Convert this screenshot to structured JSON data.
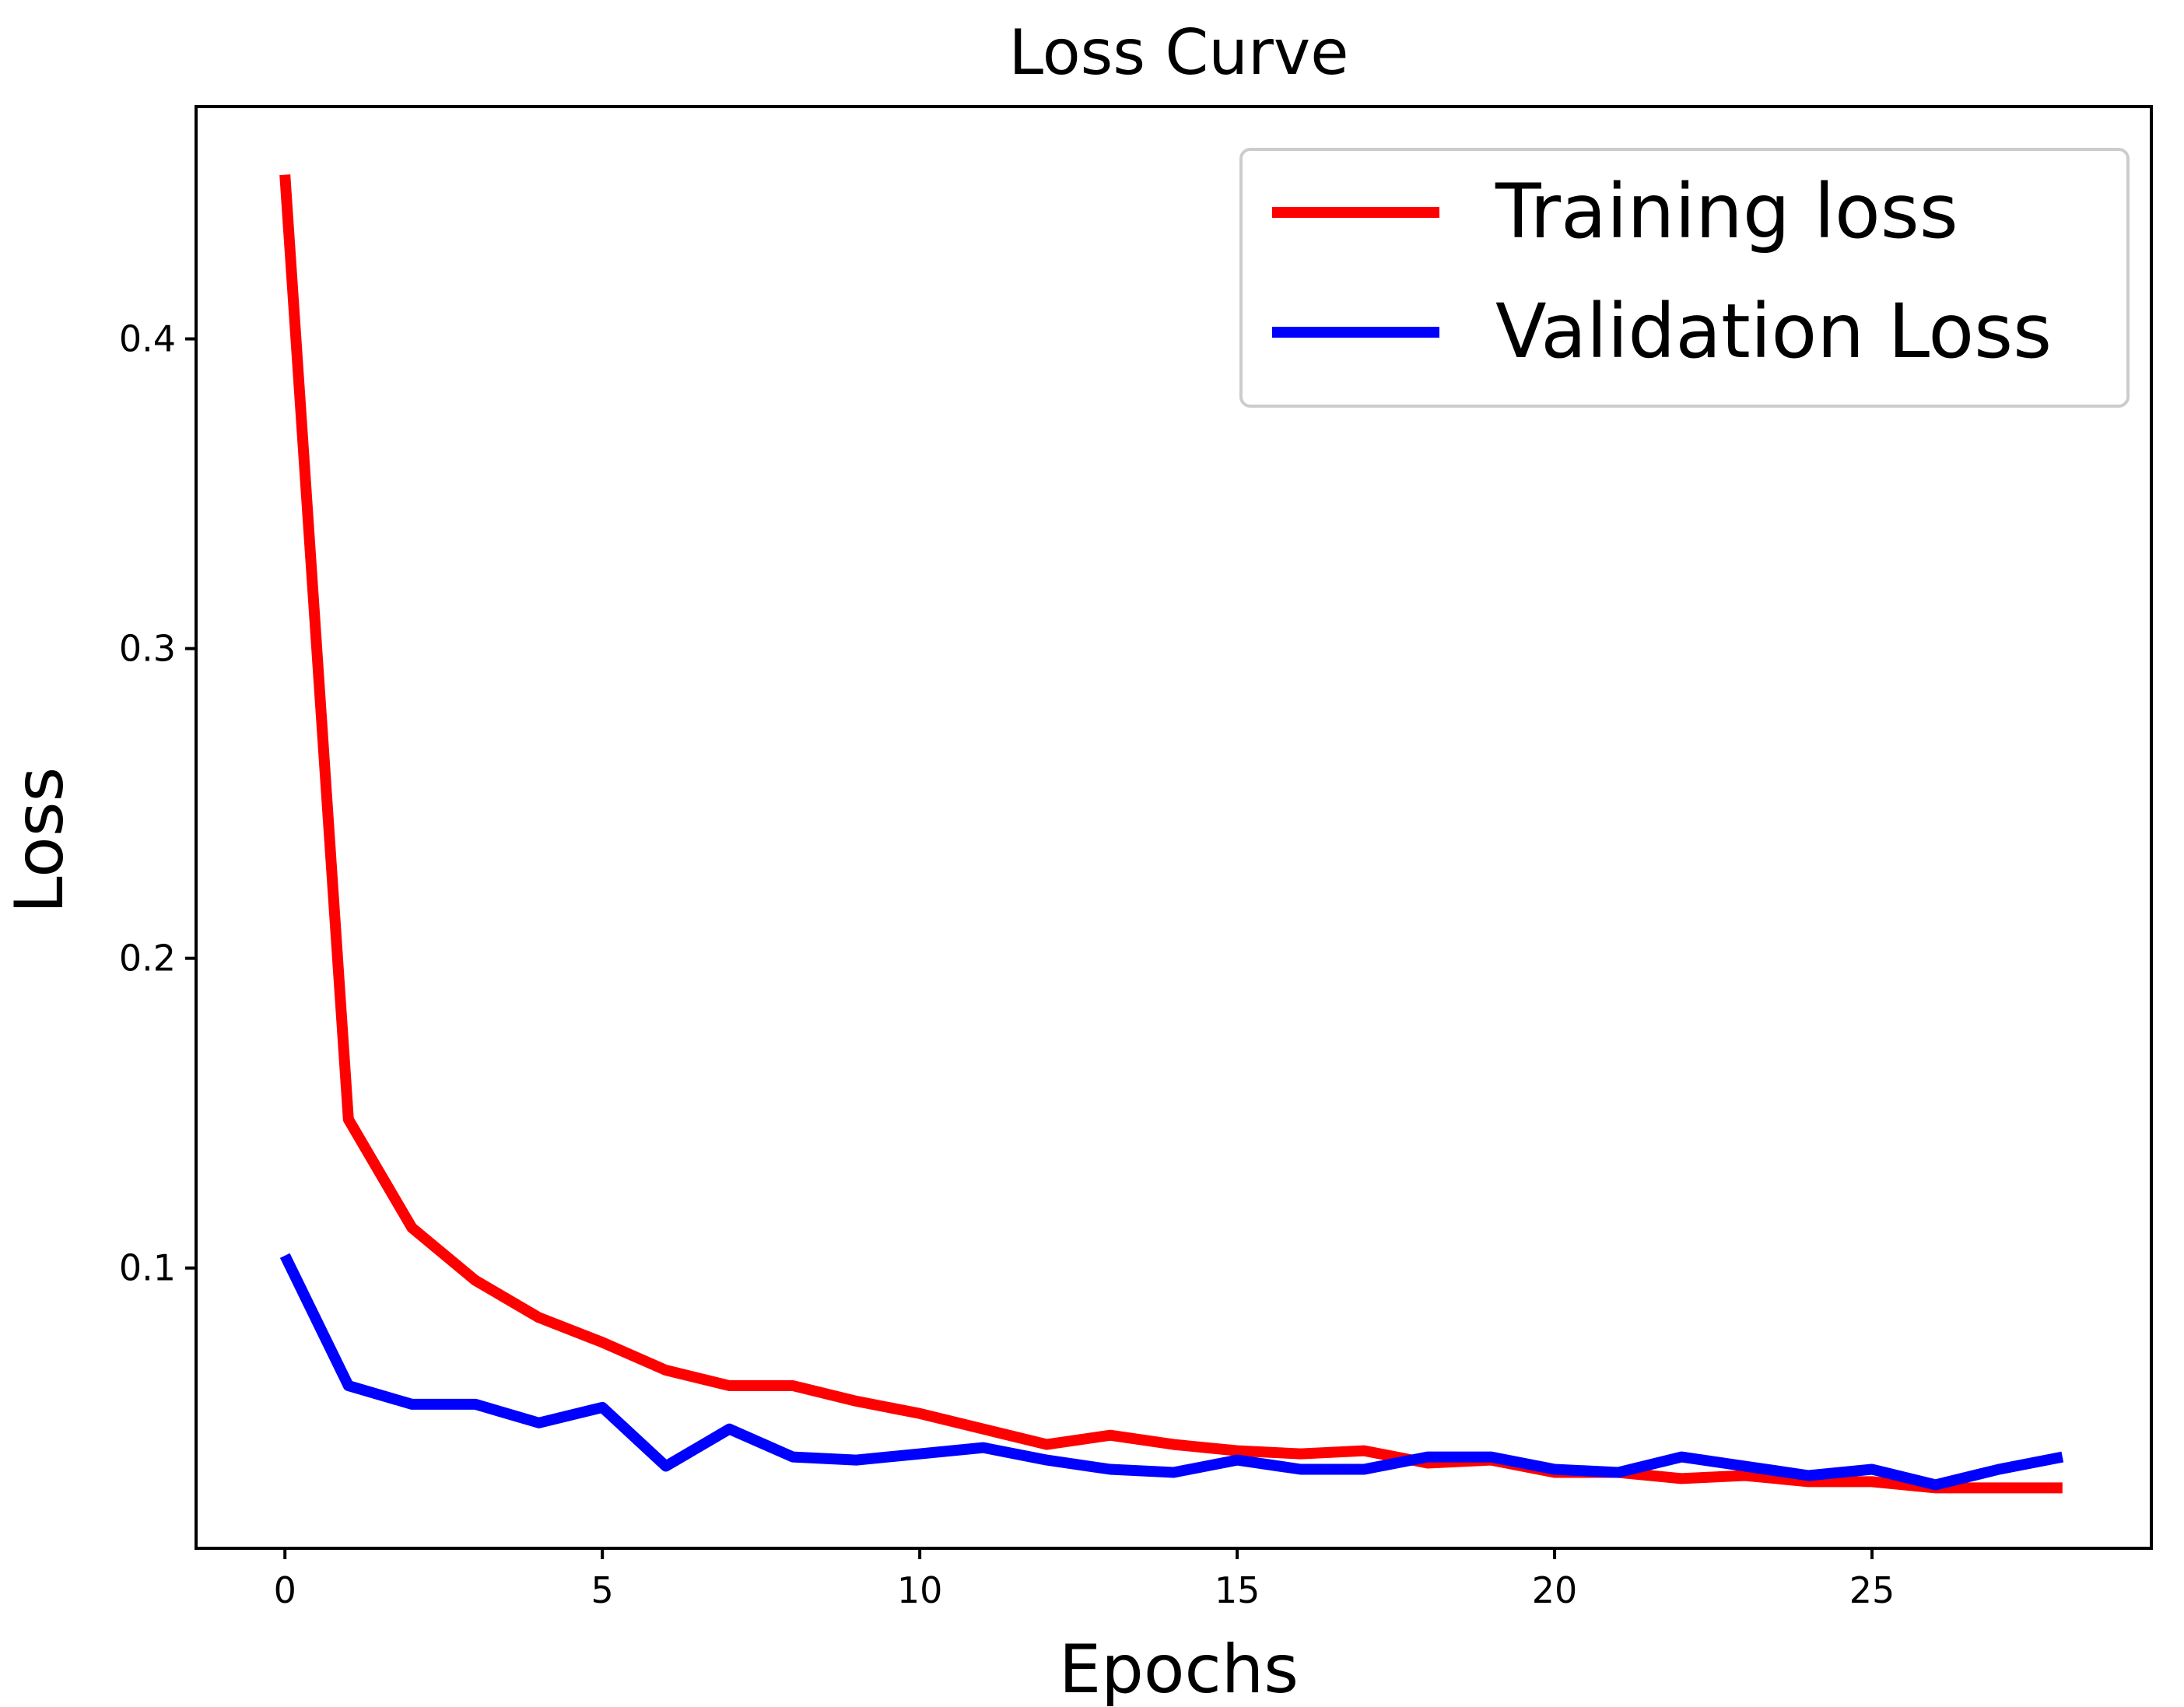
{
  "chart_data": {
    "type": "line",
    "title": "Loss Curve",
    "xlabel": "Epochs",
    "ylabel": "Loss",
    "xlim": [
      -1.4,
      29.4
    ],
    "ylim": [
      0.0095,
      0.475
    ],
    "xticks": [
      0,
      5,
      10,
      15,
      20,
      25
    ],
    "yticks": [
      0.1,
      0.2,
      0.3,
      0.4
    ],
    "xtick_labels": [
      "0",
      "5",
      "10",
      "15",
      "20",
      "25"
    ],
    "ytick_labels": [
      "0.1",
      "0.2",
      "0.3",
      "0.4"
    ],
    "grid": false,
    "legend_position": "upper right",
    "x": [
      0,
      1,
      2,
      3,
      4,
      5,
      6,
      7,
      8,
      9,
      10,
      11,
      12,
      13,
      14,
      15,
      16,
      17,
      18,
      19,
      20,
      21,
      22,
      23,
      24,
      25,
      26,
      27,
      28
    ],
    "series": [
      {
        "name": "Training loss",
        "color": "#ff0000",
        "values": [
          0.453,
          0.148,
          0.113,
          0.096,
          0.084,
          0.076,
          0.067,
          0.062,
          0.062,
          0.057,
          0.053,
          0.048,
          0.043,
          0.046,
          0.043,
          0.041,
          0.04,
          0.041,
          0.037,
          0.038,
          0.034,
          0.034,
          0.032,
          0.033,
          0.031,
          0.031,
          0.029,
          0.029,
          0.029
        ]
      },
      {
        "name": "Validation Loss",
        "color": "#0000ff",
        "values": [
          0.104,
          0.062,
          0.056,
          0.056,
          0.05,
          0.055,
          0.036,
          0.048,
          0.039,
          0.038,
          0.04,
          0.042,
          0.038,
          0.035,
          0.034,
          0.038,
          0.035,
          0.035,
          0.039,
          0.039,
          0.035,
          0.034,
          0.039,
          0.036,
          0.033,
          0.035,
          0.03,
          0.035,
          0.039
        ]
      }
    ]
  }
}
